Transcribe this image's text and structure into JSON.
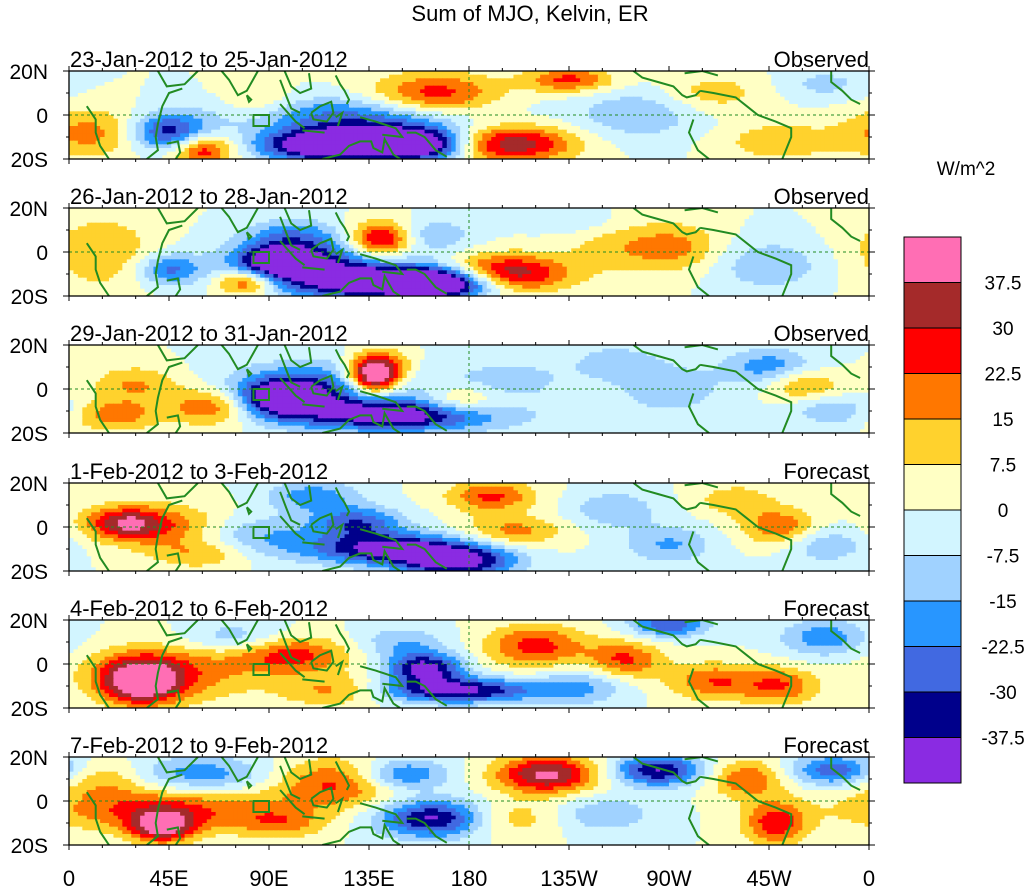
{
  "chart_data": {
    "type": "heatmap",
    "title": "Sum of MJO, Kelvin, ER",
    "units_label": "W/m^2",
    "x_ticks": [
      "0",
      "45E",
      "90E",
      "135E",
      "180",
      "135W",
      "90W",
      "45W",
      "0"
    ],
    "y_ticks": [
      "20N",
      "0",
      "20S"
    ],
    "colorbar": {
      "labels": [
        "37.5",
        "30",
        "22.5",
        "15",
        "7.5",
        "0",
        "-7.5",
        "-15",
        "-22.5",
        "-30",
        "-37.5"
      ],
      "colors": [
        "#ff6eb4",
        "#a52a2a",
        "#ff0000",
        "#ff7700",
        "#ffd22d",
        "#ffffc4",
        "#d2f5ff",
        "#a0d2ff",
        "#2896ff",
        "#4169e1",
        "#00008b",
        "#8a2be2"
      ]
    },
    "panels": [
      {
        "date_range": "23-Jan-2012 to 25-Jan-2012",
        "status": "Observed"
      },
      {
        "date_range": "26-Jan-2012 to 28-Jan-2012",
        "status": "Observed"
      },
      {
        "date_range": "29-Jan-2012 to 31-Jan-2012",
        "status": "Observed"
      },
      {
        "date_range": "1-Feb-2012 to 3-Feb-2012",
        "status": "Forecast"
      },
      {
        "date_range": "4-Feb-2012 to 6-Feb-2012",
        "status": "Forecast"
      },
      {
        "date_range": "7-Feb-2012 to 9-Feb-2012",
        "status": "Forecast"
      }
    ],
    "anomaly_fields": [
      [
        {
          "lon": 125,
          "lat": 0,
          "sx": 40,
          "sy": 6,
          "v": -22
        },
        {
          "lon": 145,
          "lat": -12,
          "sx": 28,
          "sy": 6,
          "v": -42
        },
        {
          "lon": 110,
          "lat": -14,
          "sx": 18,
          "sy": 5,
          "v": -38
        },
        {
          "lon": 45,
          "lat": -8,
          "sx": 12,
          "sy": 6,
          "v": -34
        },
        {
          "lon": 160,
          "lat": -14,
          "sx": 14,
          "sy": 5,
          "v": -30
        },
        {
          "lon": 195,
          "lat": -13,
          "sx": 22,
          "sy": 6,
          "v": 42
        },
        {
          "lon": 165,
          "lat": 9,
          "sx": 20,
          "sy": 7,
          "v": 28
        },
        {
          "lon": 60,
          "lat": -16,
          "sx": 10,
          "sy": 5,
          "v": 30
        },
        {
          "lon": 225,
          "lat": 16,
          "sx": 14,
          "sy": 4,
          "v": 25
        },
        {
          "lon": 10,
          "lat": -8,
          "sx": 16,
          "sy": 8,
          "v": 18
        },
        {
          "lon": 255,
          "lat": 0,
          "sx": 20,
          "sy": 8,
          "v": -14
        },
        {
          "lon": 290,
          "lat": 10,
          "sx": 16,
          "sy": 6,
          "v": 12
        },
        {
          "lon": 320,
          "lat": -12,
          "sx": 18,
          "sy": 6,
          "v": 14
        },
        {
          "lon": 85,
          "lat": 5,
          "sx": 12,
          "sy": 6,
          "v": 12
        },
        {
          "lon": 340,
          "lat": 14,
          "sx": 14,
          "sy": 5,
          "v": -10
        }
      ],
      [
        {
          "lon": 115,
          "lat": -6,
          "sx": 30,
          "sy": 9,
          "v": -30
        },
        {
          "lon": 95,
          "lat": -4,
          "sx": 12,
          "sy": 5,
          "v": -42
        },
        {
          "lon": 145,
          "lat": -14,
          "sx": 28,
          "sy": 5,
          "v": -44
        },
        {
          "lon": 170,
          "lat": -14,
          "sx": 16,
          "sy": 5,
          "v": -40
        },
        {
          "lon": 140,
          "lat": 5,
          "sx": 10,
          "sy": 6,
          "v": 40
        },
        {
          "lon": 195,
          "lat": -10,
          "sx": 20,
          "sy": 6,
          "v": 42
        },
        {
          "lon": 80,
          "lat": -14,
          "sx": 10,
          "sy": 4,
          "v": 30
        },
        {
          "lon": 45,
          "lat": -8,
          "sx": 10,
          "sy": 5,
          "v": -24
        },
        {
          "lon": 15,
          "lat": 0,
          "sx": 18,
          "sy": 12,
          "v": 14
        },
        {
          "lon": 100,
          "lat": 8,
          "sx": 14,
          "sy": 5,
          "v": -16
        },
        {
          "lon": 250,
          "lat": 2,
          "sx": 18,
          "sy": 8,
          "v": 12
        },
        {
          "lon": 275,
          "lat": 2,
          "sx": 14,
          "sy": 8,
          "v": 14
        },
        {
          "lon": 315,
          "lat": -6,
          "sx": 18,
          "sy": 8,
          "v": -14
        },
        {
          "lon": 165,
          "lat": 8,
          "sx": 12,
          "sy": 5,
          "v": -12
        },
        {
          "lon": 225,
          "lat": 14,
          "sx": 14,
          "sy": 4,
          "v": -8
        }
      ],
      [
        {
          "lon": 95,
          "lat": -4,
          "sx": 14,
          "sy": 6,
          "v": -42
        },
        {
          "lon": 120,
          "lat": 0,
          "sx": 32,
          "sy": 9,
          "v": -26
        },
        {
          "lon": 150,
          "lat": -12,
          "sx": 32,
          "sy": 5,
          "v": -42
        },
        {
          "lon": 137,
          "lat": 5,
          "sx": 8,
          "sy": 6,
          "v": 42
        },
        {
          "lon": 140,
          "lat": 9,
          "sx": 10,
          "sy": 6,
          "v": 30
        },
        {
          "lon": 65,
          "lat": -8,
          "sx": 14,
          "sy": 6,
          "v": 25
        },
        {
          "lon": 30,
          "lat": 2,
          "sx": 14,
          "sy": 6,
          "v": 16
        },
        {
          "lon": 20,
          "lat": -12,
          "sx": 14,
          "sy": 5,
          "v": 20
        },
        {
          "lon": 175,
          "lat": -6,
          "sx": 14,
          "sy": 5,
          "v": 20
        },
        {
          "lon": 200,
          "lat": 4,
          "sx": 16,
          "sy": 6,
          "v": -12
        },
        {
          "lon": 245,
          "lat": 12,
          "sx": 14,
          "sy": 6,
          "v": -12
        },
        {
          "lon": 270,
          "lat": 0,
          "sx": 16,
          "sy": 8,
          "v": -14
        },
        {
          "lon": 315,
          "lat": 10,
          "sx": 14,
          "sy": 6,
          "v": -20
        },
        {
          "lon": 330,
          "lat": 2,
          "sx": 12,
          "sy": 5,
          "v": 18
        },
        {
          "lon": 345,
          "lat": -10,
          "sx": 14,
          "sy": 5,
          "v": -14
        }
      ],
      [
        {
          "lon": 80,
          "lat": -4,
          "sx": 22,
          "sy": 7,
          "v": -18
        },
        {
          "lon": 110,
          "lat": 14,
          "sx": 14,
          "sy": 5,
          "v": -20
        },
        {
          "lon": 145,
          "lat": -10,
          "sx": 26,
          "sy": 5,
          "v": -42
        },
        {
          "lon": 175,
          "lat": -16,
          "sx": 18,
          "sy": 5,
          "v": -40
        },
        {
          "lon": 45,
          "lat": 0,
          "sx": 22,
          "sy": 7,
          "v": 22
        },
        {
          "lon": 25,
          "lat": 2,
          "sx": 12,
          "sy": 5,
          "v": 28
        },
        {
          "lon": 60,
          "lat": -12,
          "sx": 16,
          "sy": 5,
          "v": 16
        },
        {
          "lon": 190,
          "lat": 14,
          "sx": 14,
          "sy": 5,
          "v": 24
        },
        {
          "lon": 200,
          "lat": -2,
          "sx": 16,
          "sy": 5,
          "v": 18
        },
        {
          "lon": 245,
          "lat": 8,
          "sx": 14,
          "sy": 6,
          "v": -14
        },
        {
          "lon": 270,
          "lat": -8,
          "sx": 14,
          "sy": 6,
          "v": -16
        },
        {
          "lon": 300,
          "lat": 12,
          "sx": 12,
          "sy": 5,
          "v": 14
        },
        {
          "lon": 320,
          "lat": 0,
          "sx": 12,
          "sy": 6,
          "v": 22
        },
        {
          "lon": 340,
          "lat": -8,
          "sx": 14,
          "sy": 6,
          "v": -14
        },
        {
          "lon": 130,
          "lat": 2,
          "sx": 14,
          "sy": 5,
          "v": -28
        }
      ],
      [
        {
          "lon": 32,
          "lat": -8,
          "sx": 12,
          "sy": 7,
          "v": 44
        },
        {
          "lon": 45,
          "lat": -4,
          "sx": 26,
          "sy": 9,
          "v": 22
        },
        {
          "lon": 100,
          "lat": 4,
          "sx": 18,
          "sy": 6,
          "v": 26
        },
        {
          "lon": 160,
          "lat": -2,
          "sx": 12,
          "sy": 5,
          "v": -42
        },
        {
          "lon": 175,
          "lat": -12,
          "sx": 26,
          "sy": 4,
          "v": -40
        },
        {
          "lon": 150,
          "lat": 10,
          "sx": 14,
          "sy": 5,
          "v": -14
        },
        {
          "lon": 120,
          "lat": -12,
          "sx": 18,
          "sy": 5,
          "v": 18
        },
        {
          "lon": 210,
          "lat": 8,
          "sx": 16,
          "sy": 7,
          "v": 26
        },
        {
          "lon": 250,
          "lat": 2,
          "sx": 12,
          "sy": 6,
          "v": 24
        },
        {
          "lon": 230,
          "lat": -10,
          "sx": 14,
          "sy": 6,
          "v": -16
        },
        {
          "lon": 270,
          "lat": 18,
          "sx": 12,
          "sy": 4,
          "v": -30
        },
        {
          "lon": 290,
          "lat": -8,
          "sx": 14,
          "sy": 6,
          "v": 22
        },
        {
          "lon": 320,
          "lat": -10,
          "sx": 12,
          "sy": 6,
          "v": 22
        },
        {
          "lon": 340,
          "lat": 12,
          "sx": 14,
          "sy": 6,
          "v": -20
        },
        {
          "lon": 75,
          "lat": 12,
          "sx": 16,
          "sy": 5,
          "v": -14
        }
      ],
      [
        {
          "lon": 42,
          "lat": -4,
          "sx": 36,
          "sy": 7,
          "v": 26
        },
        {
          "lon": 42,
          "lat": -12,
          "sx": 10,
          "sy": 5,
          "v": 36
        },
        {
          "lon": 60,
          "lat": 12,
          "sx": 22,
          "sy": 6,
          "v": -20
        },
        {
          "lon": 120,
          "lat": 8,
          "sx": 20,
          "sy": 8,
          "v": 24
        },
        {
          "lon": 165,
          "lat": -8,
          "sx": 18,
          "sy": 6,
          "v": -42
        },
        {
          "lon": 150,
          "lat": 12,
          "sx": 14,
          "sy": 5,
          "v": -26
        },
        {
          "lon": 215,
          "lat": 12,
          "sx": 16,
          "sy": 6,
          "v": 40
        },
        {
          "lon": 265,
          "lat": 14,
          "sx": 14,
          "sy": 5,
          "v": -38
        },
        {
          "lon": 305,
          "lat": 10,
          "sx": 12,
          "sy": 6,
          "v": 22
        },
        {
          "lon": 318,
          "lat": -10,
          "sx": 10,
          "sy": 7,
          "v": 28
        },
        {
          "lon": 345,
          "lat": 14,
          "sx": 14,
          "sy": 5,
          "v": -28
        },
        {
          "lon": 195,
          "lat": -8,
          "sx": 18,
          "sy": 6,
          "v": 16
        },
        {
          "lon": 240,
          "lat": -6,
          "sx": 16,
          "sy": 6,
          "v": -14
        },
        {
          "lon": 95,
          "lat": -10,
          "sx": 14,
          "sy": 5,
          "v": 16
        },
        {
          "lon": 15,
          "lat": 10,
          "sx": 14,
          "sy": 6,
          "v": 14
        }
      ]
    ]
  }
}
